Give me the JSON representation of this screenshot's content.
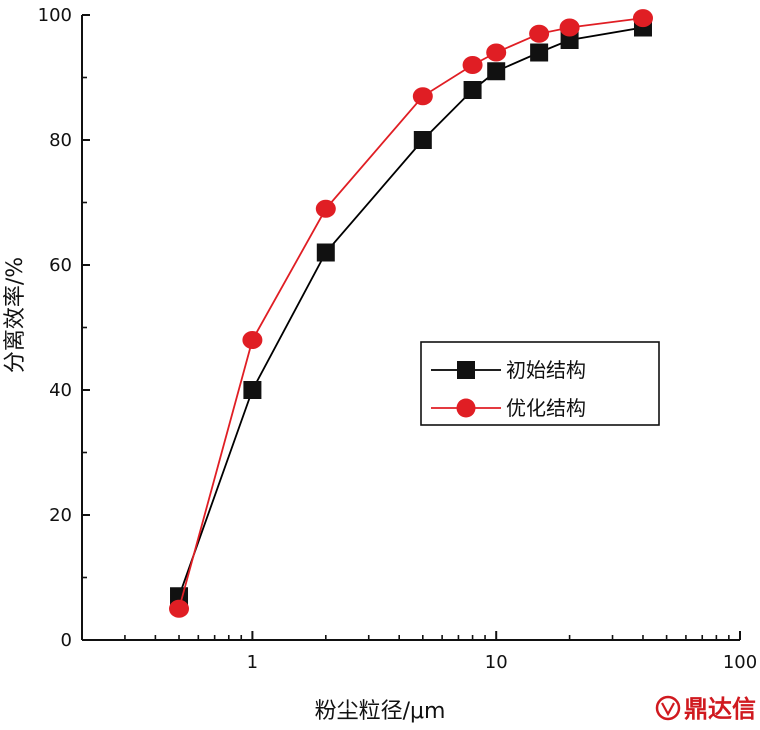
{
  "chart_data": {
    "type": "line",
    "xscale": "log",
    "xlim": [
      0.2,
      100
    ],
    "ylim": [
      0,
      100
    ],
    "xlabel": "粉尘粒径/μm",
    "ylabel": "分离效率/%",
    "x_ticks": [
      "1",
      "10",
      "100"
    ],
    "y_ticks": [
      "0",
      "20",
      "40",
      "60",
      "80",
      "100"
    ],
    "legend_position": "center-right",
    "series": [
      {
        "name": "初始结构",
        "color": "#000000",
        "marker": "square",
        "x": [
          0.5,
          1,
          2,
          5,
          8,
          10,
          15,
          20,
          40
        ],
        "y": [
          7,
          40,
          62,
          80,
          88,
          91,
          94,
          96,
          98
        ]
      },
      {
        "name": "优化结构",
        "color": "#e01e24",
        "marker": "circle",
        "x": [
          0.5,
          1,
          2,
          5,
          8,
          10,
          15,
          20,
          40
        ],
        "y": [
          5,
          48,
          69,
          87,
          92,
          94,
          97,
          98,
          99.5
        ]
      }
    ]
  },
  "watermark": {
    "text": "鼎达信",
    "icon": "logo-icon"
  }
}
